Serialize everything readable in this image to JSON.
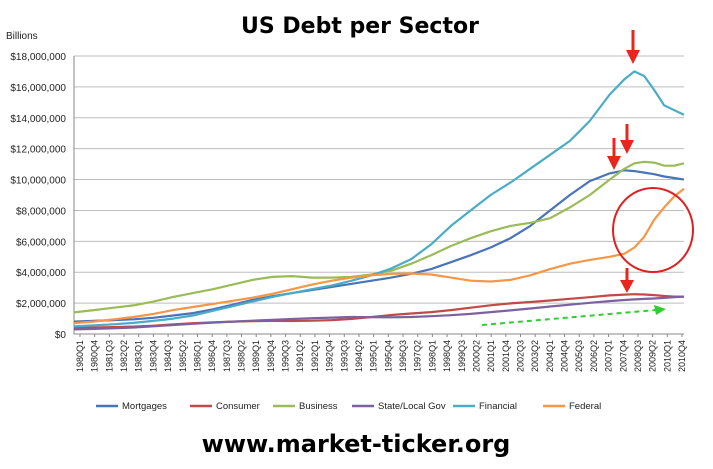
{
  "chart_data": {
    "type": "line",
    "title": "US Debt per Sector",
    "ylabel": "Billions",
    "footer": "www.market-ticker.org",
    "ylim": [
      0,
      18000000
    ],
    "yticks": [
      0,
      2000000,
      4000000,
      6000000,
      8000000,
      10000000,
      12000000,
      14000000,
      16000000,
      18000000
    ],
    "ytick_labels": [
      "$0",
      "$2,000,000",
      "$4,000,000",
      "$6,000,000",
      "$8,000,000",
      "$10,000,000",
      "$12,000,000",
      "$14,000,000",
      "$16,000,000",
      "$18,000,000"
    ],
    "grid": true,
    "legend_position": "bottom",
    "x_labels": [
      "1980Q1",
      "1980Q4",
      "1981Q3",
      "1982Q2",
      "1983Q1",
      "1983Q4",
      "1984Q3",
      "1985Q2",
      "1986Q1",
      "1986Q4",
      "1987Q3",
      "1988Q2",
      "1989Q1",
      "1989Q4",
      "1990Q3",
      "1991Q2",
      "1992Q1",
      "1992Q4",
      "1993Q3",
      "1994Q2",
      "1995Q1",
      "1995Q4",
      "1996Q3",
      "1997Q2",
      "1998Q1",
      "1998Q4",
      "1999Q3",
      "2000Q2",
      "2001Q1",
      "2001Q4",
      "2002Q3",
      "2003Q2",
      "2004Q1",
      "2004Q4",
      "2005Q3",
      "2006Q2",
      "2007Q1",
      "2007Q4",
      "2008Q3",
      "2009Q2",
      "2010Q1",
      "2010Q4"
    ],
    "x_key": [
      1980.0,
      1981.0,
      1982.0,
      1983.0,
      1984.0,
      1985.0,
      1986.0,
      1987.0,
      1988.0,
      1989.0,
      1990.0,
      1991.0,
      1992.0,
      1993.0,
      1994.0,
      1995.0,
      1996.0,
      1997.0,
      1998.0,
      1999.0,
      2000.0,
      2001.0,
      2002.0,
      2003.0,
      2004.0,
      2005.0,
      2006.0,
      2007.0,
      2007.75,
      2008.25,
      2008.75,
      2009.25,
      2009.75,
      2010.25,
      2010.75
    ],
    "series": [
      {
        "name": "Mortgages",
        "color": "#4a74b8",
        "values": [
          800000,
          850000,
          900000,
          950000,
          1050000,
          1200000,
          1350000,
          1600000,
          1900000,
          2200000,
          2450000,
          2650000,
          2850000,
          3050000,
          3250000,
          3450000,
          3650000,
          3900000,
          4200000,
          4650000,
          5100000,
          5600000,
          6200000,
          7000000,
          8000000,
          9000000,
          9900000,
          10400000,
          10600000,
          10550000,
          10450000,
          10350000,
          10200000,
          10100000,
          10000000
        ]
      },
      {
        "name": "Consumer",
        "color": "#be4b48",
        "values": [
          400000,
          420000,
          450000,
          480000,
          540000,
          620000,
          700000,
          760000,
          800000,
          830000,
          850000,
          840000,
          860000,
          900000,
          980000,
          1100000,
          1230000,
          1330000,
          1420000,
          1550000,
          1700000,
          1860000,
          1980000,
          2070000,
          2170000,
          2280000,
          2380000,
          2500000,
          2550000,
          2580000,
          2560000,
          2520000,
          2460000,
          2420000,
          2420000
        ]
      },
      {
        "name": "Business",
        "color": "#9bbb59",
        "values": [
          1400000,
          1550000,
          1700000,
          1850000,
          2100000,
          2400000,
          2650000,
          2900000,
          3200000,
          3500000,
          3700000,
          3750000,
          3650000,
          3650000,
          3700000,
          3850000,
          4100000,
          4550000,
          5100000,
          5700000,
          6200000,
          6650000,
          7000000,
          7200000,
          7500000,
          8200000,
          9000000,
          10000000,
          10700000,
          11050000,
          11150000,
          11100000,
          10900000,
          10900000,
          11050000
        ]
      },
      {
        "name": "State/Local Gov",
        "color": "#7d60a0",
        "values": [
          300000,
          330000,
          370000,
          420000,
          500000,
          580000,
          660000,
          730000,
          800000,
          860000,
          920000,
          970000,
          1020000,
          1060000,
          1100000,
          1090000,
          1080000,
          1100000,
          1150000,
          1220000,
          1300000,
          1420000,
          1530000,
          1650000,
          1780000,
          1900000,
          2020000,
          2130000,
          2200000,
          2240000,
          2270000,
          2300000,
          2340000,
          2380000,
          2420000
        ]
      },
      {
        "name": "Financial",
        "color": "#4bacc6",
        "values": [
          500000,
          560000,
          630000,
          720000,
          850000,
          1000000,
          1200000,
          1500000,
          1800000,
          2100000,
          2400000,
          2650000,
          2900000,
          3150000,
          3450000,
          3800000,
          4250000,
          4850000,
          5800000,
          7000000,
          8000000,
          9000000,
          9800000,
          10700000,
          11600000,
          12500000,
          13800000,
          15500000,
          16500000,
          17000000,
          16700000,
          15800000,
          14800000,
          14500000,
          14200000
        ]
      },
      {
        "name": "Federal",
        "color": "#f79646",
        "values": [
          700000,
          800000,
          950000,
          1100000,
          1300000,
          1550000,
          1750000,
          1950000,
          2150000,
          2350000,
          2600000,
          2900000,
          3200000,
          3450000,
          3650000,
          3800000,
          3900000,
          3920000,
          3850000,
          3650000,
          3450000,
          3400000,
          3500000,
          3800000,
          4200000,
          4550000,
          4800000,
          5000000,
          5200000,
          5600000,
          6300000,
          7400000,
          8200000,
          8900000,
          9400000
        ]
      }
    ]
  }
}
